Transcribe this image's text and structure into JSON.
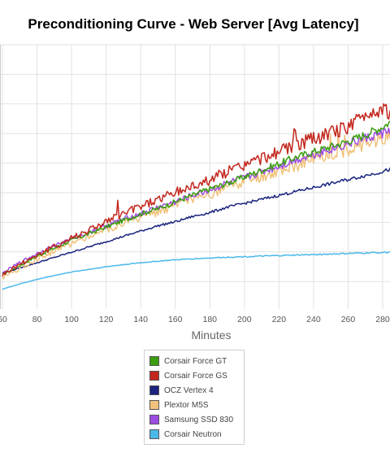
{
  "chart_data": {
    "type": "line",
    "title": "Preconditioning Curve - Web Server [Avg Latency]",
    "xlabel": "Minutes",
    "ylabel": "",
    "x_ticks": [
      60,
      80,
      100,
      120,
      140,
      160,
      180,
      200,
      220,
      240,
      260,
      280
    ],
    "xlim": [
      60,
      285
    ],
    "ylim": [
      0,
      10
    ],
    "grid": true,
    "legend_position": "bottom",
    "series": [
      {
        "name": "Corsair Force GT",
        "color": "#3a9e0f",
        "x": [
          60,
          70,
          80,
          90,
          100,
          110,
          120,
          130,
          140,
          150,
          160,
          170,
          180,
          190,
          200,
          210,
          220,
          230,
          240,
          250,
          260,
          270,
          280,
          285
        ],
        "values": [
          1.3,
          1.65,
          2.0,
          2.3,
          2.6,
          2.85,
          3.1,
          3.35,
          3.6,
          3.8,
          4.05,
          4.3,
          4.55,
          4.75,
          5.0,
          5.25,
          5.5,
          5.75,
          5.95,
          6.15,
          6.35,
          6.6,
          6.9,
          7.1
        ],
        "noise": 0.12
      },
      {
        "name": "Corsair Force GS",
        "color": "#c3261c",
        "x": [
          60,
          70,
          80,
          90,
          100,
          110,
          120,
          130,
          140,
          150,
          160,
          170,
          180,
          190,
          200,
          210,
          220,
          230,
          240,
          250,
          260,
          270,
          280,
          285
        ],
        "values": [
          1.3,
          1.7,
          2.05,
          2.35,
          2.7,
          3.0,
          3.3,
          3.6,
          3.9,
          4.15,
          4.4,
          4.65,
          4.9,
          5.2,
          5.45,
          5.7,
          5.95,
          6.2,
          6.45,
          6.65,
          6.9,
          7.35,
          7.6,
          7.4
        ],
        "noise": 0.22
      },
      {
        "name": "OCZ Vertex 4",
        "color": "#1a237e",
        "x": [
          60,
          70,
          80,
          90,
          100,
          110,
          120,
          130,
          140,
          150,
          160,
          170,
          180,
          190,
          200,
          210,
          220,
          230,
          240,
          250,
          260,
          270,
          280,
          285
        ],
        "values": [
          1.35,
          1.55,
          1.75,
          1.95,
          2.15,
          2.35,
          2.55,
          2.75,
          2.95,
          3.15,
          3.3,
          3.5,
          3.65,
          3.85,
          4.0,
          4.15,
          4.3,
          4.45,
          4.6,
          4.75,
          4.9,
          5.05,
          5.2,
          5.3
        ],
        "noise": 0.05
      },
      {
        "name": "Plextor M5S",
        "color": "#f0c27b",
        "x": [
          60,
          70,
          80,
          90,
          100,
          110,
          120,
          130,
          140,
          150,
          160,
          170,
          180,
          190,
          200,
          210,
          220,
          230,
          240,
          250,
          260,
          270,
          280,
          285
        ],
        "values": [
          1.2,
          1.55,
          1.9,
          2.2,
          2.5,
          2.75,
          3.0,
          3.25,
          3.45,
          3.7,
          3.9,
          4.15,
          4.35,
          4.6,
          4.8,
          5.0,
          5.2,
          5.45,
          5.65,
          5.85,
          6.05,
          6.3,
          6.5,
          6.6
        ],
        "noise": 0.22
      },
      {
        "name": "Samsung SSD 830",
        "color": "#9d4ce3",
        "x": [
          60,
          70,
          80,
          90,
          100,
          110,
          120,
          130,
          140,
          150,
          160,
          170,
          180,
          190,
          200,
          210,
          220,
          230,
          240,
          250,
          260,
          270,
          280,
          285
        ],
        "values": [
          1.35,
          1.75,
          2.1,
          2.4,
          2.65,
          2.9,
          3.15,
          3.4,
          3.6,
          3.85,
          4.05,
          4.3,
          4.5,
          4.75,
          4.95,
          5.2,
          5.4,
          5.65,
          5.85,
          6.05,
          6.25,
          6.45,
          6.65,
          6.8
        ],
        "noise": 0.14
      },
      {
        "name": "Corsair Neutron",
        "color": "#4cb8ea",
        "x": [
          60,
          70,
          80,
          90,
          100,
          110,
          120,
          130,
          140,
          150,
          160,
          170,
          180,
          190,
          200,
          210,
          220,
          230,
          240,
          250,
          260,
          270,
          280,
          285
        ],
        "values": [
          0.75,
          0.95,
          1.12,
          1.27,
          1.4,
          1.5,
          1.6,
          1.68,
          1.75,
          1.81,
          1.86,
          1.9,
          1.93,
          1.96,
          1.98,
          2.0,
          2.02,
          2.04,
          2.06,
          2.08,
          2.1,
          2.12,
          2.14,
          2.15
        ],
        "noise": 0.02
      }
    ]
  }
}
